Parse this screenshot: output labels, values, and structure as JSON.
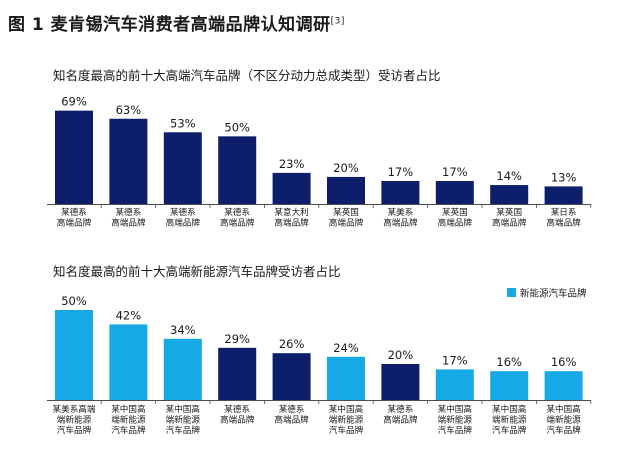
{
  "figure": {
    "title": "图 1   麦肯锡汽车消费者高端品牌认知调研",
    "ref": "[3]"
  },
  "colors": {
    "navy": "#0d1f6b",
    "cyan": "#17a8e6"
  },
  "chart_data": [
    {
      "type": "bar",
      "title": "知名度最高的前十大高端汽车品牌（不区分动力总成类型）受访者占比",
      "xlabel": "",
      "ylabel": "",
      "ylim": [
        0,
        75
      ],
      "categories": [
        "某德系\n高端品牌",
        "某德系\n高端品牌",
        "某德系\n高端品牌",
        "某德系\n高端品牌",
        "某意大利\n高端品牌",
        "某英国\n高端品牌",
        "某美系\n高端品牌",
        "某英国\n高端品牌",
        "某英国\n高端品牌",
        "某日系\n高端品牌"
      ],
      "series": [
        {
          "values": [
            69,
            63,
            53,
            50,
            23,
            20,
            17,
            17,
            14,
            13
          ],
          "value_labels": [
            "69%",
            "63%",
            "53%",
            "50%",
            "23%",
            "20%",
            "17%",
            "17%",
            "14%",
            "13%"
          ],
          "bar_colors": [
            "navy",
            "navy",
            "navy",
            "navy",
            "navy",
            "navy",
            "navy",
            "navy",
            "navy",
            "navy"
          ]
        }
      ],
      "legend": null,
      "grid": false
    },
    {
      "type": "bar",
      "title": "知名度最高的前十大高端新能源汽车品牌受访者占比",
      "xlabel": "",
      "ylabel": "",
      "ylim": [
        0,
        75
      ],
      "categories": [
        "某美系高端\n端新能源\n汽车品牌",
        "某中国高\n端新能源\n汽车品牌",
        "某中国高\n端新能源\n汽车品牌",
        "某德系\n高端品牌",
        "某德系\n高端品牌",
        "某中国高\n端新能源\n汽车品牌",
        "某德系\n高端品牌",
        "某中国高\n端新能源\n汽车品牌",
        "某中国高\n端新能源\n汽车品牌",
        "某中国高\n端新能源\n汽车品牌"
      ],
      "series": [
        {
          "values": [
            50,
            42,
            34,
            29,
            26,
            24,
            20,
            17,
            16,
            16
          ],
          "value_labels": [
            "50%",
            "42%",
            "34%",
            "29%",
            "26%",
            "24%",
            "20%",
            "17%",
            "16%",
            "16%"
          ],
          "bar_colors": [
            "cyan",
            "cyan",
            "cyan",
            "navy",
            "navy",
            "cyan",
            "navy",
            "cyan",
            "cyan",
            "cyan"
          ]
        }
      ],
      "legend": {
        "position": "top-right",
        "label": "新能源汽车品牌",
        "color": "cyan"
      },
      "grid": false
    }
  ]
}
